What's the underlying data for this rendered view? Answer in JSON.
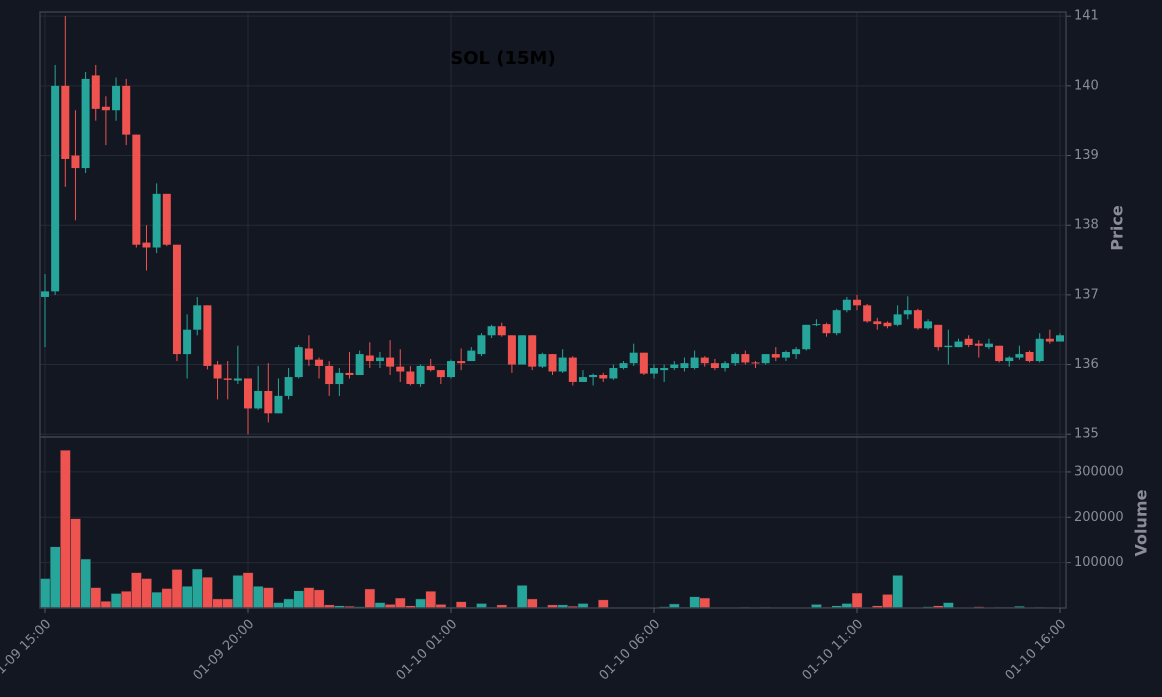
{
  "chart_data": [
    {
      "type": "candlestick",
      "title": "SOL (15M)",
      "ylabel": "Price",
      "categories": [
        "01-09 15:00",
        null,
        null,
        null,
        null,
        null,
        null,
        null,
        null,
        null,
        null,
        null,
        null,
        null,
        null,
        null,
        null,
        null,
        null,
        null,
        "01-09 20:00",
        null,
        null,
        null,
        null,
        null,
        null,
        null,
        null,
        null,
        null,
        null,
        null,
        null,
        null,
        null,
        null,
        null,
        null,
        null,
        "01-10 01:00",
        null,
        null,
        null,
        null,
        null,
        null,
        null,
        null,
        null,
        null,
        null,
        null,
        null,
        null,
        null,
        null,
        null,
        null,
        null,
        "01-10 06:00",
        null,
        null,
        null,
        null,
        null,
        null,
        null,
        null,
        null,
        null,
        null,
        null,
        null,
        null,
        null,
        null,
        null,
        null,
        null,
        "01-10 11:00",
        null,
        null,
        null,
        null,
        null,
        null,
        null,
        null,
        null,
        null,
        null,
        null,
        null,
        null,
        null,
        null,
        null,
        null,
        null,
        "01-10 16:00"
      ],
      "open": [
        136.97,
        137.05,
        140.0,
        139.0,
        138.82,
        140.15,
        139.7,
        139.65,
        140.0,
        139.3,
        137.75,
        137.68,
        138.45,
        137.72,
        136.15,
        136.5,
        136.85,
        136.0,
        135.8,
        135.77,
        135.8,
        135.37,
        135.62,
        135.3,
        135.55,
        135.82,
        136.23,
        136.07,
        135.98,
        135.72,
        135.88,
        135.85,
        136.13,
        136.05,
        136.1,
        135.97,
        135.9,
        135.72,
        135.98,
        135.92,
        135.82,
        136.05,
        136.05,
        136.15,
        136.42,
        136.55,
        136.42,
        136.0,
        136.42,
        135.97,
        136.15,
        135.9,
        136.1,
        135.75,
        135.82,
        135.85,
        135.8,
        135.95,
        136.02,
        136.17,
        135.87,
        135.92,
        135.95,
        135.95,
        135.95,
        136.1,
        136.02,
        135.95,
        136.02,
        136.15,
        136.03,
        136.02,
        136.15,
        136.1,
        136.15,
        136.22,
        136.57,
        136.58,
        136.45,
        136.78,
        136.93,
        136.85,
        136.62,
        136.6,
        136.57,
        136.72,
        136.78,
        136.52,
        136.57,
        136.25,
        136.25,
        136.37,
        136.3,
        136.25,
        136.27,
        136.05,
        136.1,
        136.18,
        136.05,
        136.37,
        136.33
      ],
      "high": [
        137.3,
        140.3,
        141.0,
        139.65,
        140.2,
        140.3,
        139.85,
        140.12,
        140.1,
        139.3,
        138.0,
        138.6,
        138.45,
        137.72,
        136.72,
        136.97,
        136.85,
        136.05,
        136.05,
        136.27,
        135.8,
        135.98,
        136.02,
        135.8,
        135.95,
        136.28,
        136.42,
        136.1,
        136.05,
        135.95,
        136.18,
        136.2,
        136.32,
        136.18,
        136.35,
        136.22,
        135.98,
        136.0,
        136.08,
        135.92,
        136.07,
        136.23,
        136.25,
        136.45,
        136.57,
        136.6,
        136.42,
        136.42,
        136.42,
        136.17,
        136.15,
        136.22,
        136.12,
        135.92,
        135.87,
        135.88,
        136.0,
        136.05,
        136.3,
        136.17,
        136.0,
        136.0,
        136.05,
        136.1,
        136.2,
        136.12,
        136.08,
        136.05,
        136.17,
        136.2,
        136.05,
        136.15,
        136.25,
        136.2,
        136.25,
        136.57,
        136.65,
        136.6,
        136.8,
        136.97,
        137.0,
        136.87,
        136.67,
        136.62,
        136.85,
        136.98,
        136.8,
        136.65,
        136.57,
        136.5,
        136.37,
        136.42,
        136.35,
        136.37,
        136.27,
        136.12,
        136.27,
        136.2,
        136.45,
        136.5,
        136.45
      ],
      "low": [
        136.25,
        137.0,
        138.55,
        138.07,
        138.75,
        139.5,
        139.15,
        139.5,
        139.15,
        137.68,
        137.35,
        137.6,
        137.7,
        136.05,
        135.8,
        136.42,
        135.93,
        135.5,
        135.5,
        135.72,
        135.0,
        135.35,
        135.17,
        135.3,
        135.5,
        135.8,
        135.98,
        135.8,
        135.55,
        135.55,
        135.8,
        135.85,
        135.95,
        135.95,
        135.85,
        135.75,
        135.7,
        135.68,
        135.9,
        135.72,
        135.8,
        135.92,
        136.05,
        136.12,
        136.38,
        136.4,
        135.88,
        136.0,
        135.92,
        135.95,
        135.85,
        135.88,
        135.7,
        135.75,
        135.7,
        135.75,
        135.78,
        135.93,
        135.98,
        135.85,
        135.8,
        135.75,
        135.92,
        135.9,
        135.93,
        135.97,
        135.92,
        135.9,
        135.98,
        136.0,
        135.95,
        136.0,
        136.05,
        136.05,
        136.08,
        136.2,
        136.55,
        136.4,
        136.42,
        136.75,
        136.78,
        136.6,
        136.5,
        136.52,
        136.55,
        136.65,
        136.5,
        136.5,
        136.2,
        136.0,
        136.25,
        136.25,
        136.1,
        136.22,
        136.03,
        135.97,
        136.07,
        136.03,
        136.03,
        136.3,
        136.33
      ],
      "close": [
        137.05,
        140.0,
        138.95,
        138.82,
        140.1,
        139.67,
        139.65,
        140.0,
        139.3,
        137.72,
        137.68,
        138.45,
        137.72,
        136.15,
        136.5,
        136.85,
        135.98,
        135.8,
        135.78,
        135.8,
        135.37,
        135.62,
        135.3,
        135.55,
        135.82,
        136.25,
        136.07,
        135.98,
        135.72,
        135.88,
        135.85,
        136.15,
        136.05,
        136.1,
        135.97,
        135.9,
        135.72,
        135.98,
        135.92,
        135.82,
        136.05,
        136.02,
        136.2,
        136.42,
        136.55,
        136.42,
        136.0,
        136.42,
        135.97,
        136.15,
        135.9,
        136.1,
        135.75,
        135.82,
        135.85,
        135.8,
        135.95,
        136.02,
        136.17,
        135.87,
        135.95,
        135.95,
        136.0,
        136.02,
        136.1,
        136.02,
        135.95,
        136.02,
        136.15,
        136.03,
        136.02,
        136.15,
        136.1,
        136.18,
        136.22,
        136.57,
        136.58,
        136.45,
        136.78,
        136.93,
        136.85,
        136.62,
        136.58,
        136.55,
        136.72,
        136.78,
        136.52,
        136.62,
        136.25,
        136.27,
        136.33,
        136.28,
        136.27,
        136.3,
        136.05,
        136.1,
        136.15,
        136.05,
        136.37,
        136.33,
        136.42
      ],
      "up_color": "#26a69a",
      "down_color": "#ef5350",
      "ylim": [
        134.96,
        141.06
      ],
      "yticks": [
        135,
        136,
        137,
        138,
        139,
        140,
        141
      ],
      "grid": true
    },
    {
      "type": "bar",
      "ylabel": "Volume",
      "values": [
        65000,
        135000,
        348000,
        197000,
        108000,
        45000,
        15000,
        32000,
        37000,
        78000,
        65000,
        35000,
        43000,
        85000,
        48000,
        86000,
        68000,
        20000,
        20000,
        72000,
        78000,
        48000,
        45000,
        12000,
        20000,
        38000,
        45000,
        40000,
        7000,
        5000,
        4000,
        3000,
        42000,
        12000,
        8000,
        22000,
        5000,
        20000,
        37000,
        8000,
        2000,
        14000,
        2000,
        10000,
        2000,
        7000,
        2000,
        50000,
        20000,
        2000,
        7000,
        7000,
        4000,
        10000,
        1000,
        18000,
        1000,
        1000,
        1000,
        1000,
        1000,
        3000,
        9000,
        2000,
        25000,
        22000,
        1000,
        1000,
        1000,
        2000,
        1000,
        2000,
        1000,
        1000,
        1000,
        1000,
        8000,
        2000,
        5000,
        10000,
        33000,
        1000,
        5000,
        30000,
        72000,
        1000,
        1000,
        3000,
        5000,
        12000,
        1000,
        1000,
        3000,
        1000,
        2000,
        2000,
        4000,
        1000,
        2000,
        1000,
        1000
      ],
      "ylim": [
        0,
        377000
      ],
      "yticks": [
        100000,
        200000,
        300000
      ],
      "grid": true
    }
  ]
}
